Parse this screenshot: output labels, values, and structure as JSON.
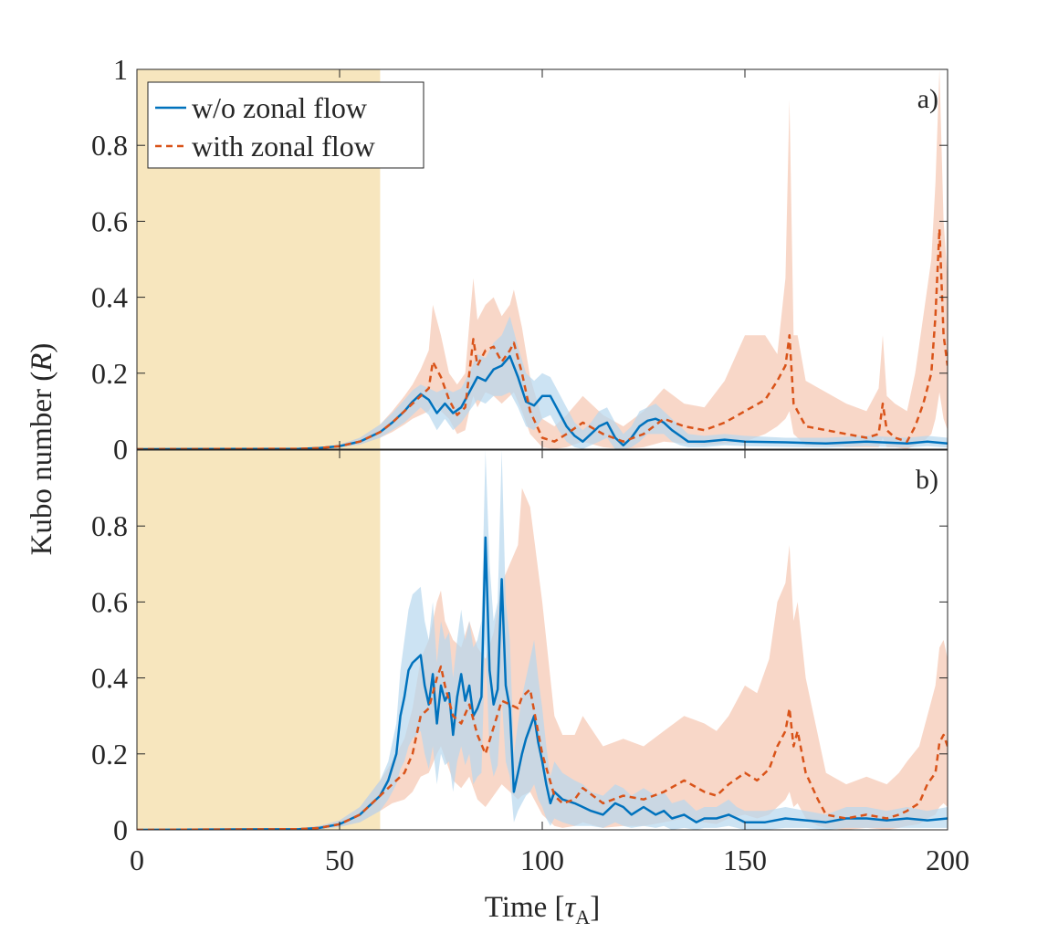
{
  "figure": {
    "xlabel_main": "Time [",
    "xlabel_tau": "τ",
    "xlabel_sub": "A",
    "xlabel_end": "]",
    "ylabel_main": "Kubo number (",
    "ylabel_var": "R",
    "ylabel_end": ")"
  },
  "colors": {
    "blue": "#0072BD",
    "blue_band": "#B7D7EE",
    "orange": "#D95319",
    "orange_band": "#F6C9B5",
    "shade": "#F7E6BE",
    "axis": "#262626"
  },
  "legend": {
    "items": [
      {
        "label": "w/o zonal flow",
        "style": "solid",
        "color": "#0072BD"
      },
      {
        "label": "with zonal flow",
        "style": "dashed",
        "color": "#D95319"
      }
    ]
  },
  "chart_data": [
    {
      "type": "line",
      "panel_label": "a)",
      "xlim": [
        0,
        200
      ],
      "ylim": [
        0,
        1
      ],
      "xticks": [
        0,
        50,
        100,
        150,
        200
      ],
      "yticks": [
        0,
        0.2,
        0.4,
        0.6,
        0.8,
        1
      ],
      "ytick_labels": [
        "0",
        "0.2",
        "0.4",
        "0.6",
        "0.8",
        "1"
      ],
      "shaded_region": [
        0,
        60
      ],
      "series": [
        {
          "name": "w/o zonal flow",
          "x": [
            0,
            40,
            45,
            50,
            55,
            60,
            63,
            66,
            68,
            70,
            72,
            74,
            76,
            78,
            80,
            82,
            84,
            86,
            88,
            90,
            92,
            94,
            96,
            98,
            100,
            102,
            104,
            106,
            108,
            110,
            112,
            114,
            116,
            118,
            120,
            122,
            124,
            126,
            128,
            130,
            132,
            134,
            136,
            140,
            145,
            150,
            160,
            170,
            180,
            190,
            195,
            200
          ],
          "y": [
            0,
            0.001,
            0.003,
            0.008,
            0.02,
            0.045,
            0.07,
            0.1,
            0.125,
            0.145,
            0.13,
            0.095,
            0.12,
            0.095,
            0.11,
            0.15,
            0.19,
            0.18,
            0.21,
            0.22,
            0.245,
            0.19,
            0.125,
            0.115,
            0.14,
            0.14,
            0.1,
            0.06,
            0.035,
            0.02,
            0.04,
            0.06,
            0.07,
            0.03,
            0.01,
            0.03,
            0.06,
            0.075,
            0.08,
            0.07,
            0.05,
            0.035,
            0.02,
            0.02,
            0.025,
            0.02,
            0.018,
            0.015,
            0.02,
            0.015,
            0.02,
            0.015
          ],
          "upper": [
            0,
            0.002,
            0.005,
            0.012,
            0.03,
            0.065,
            0.095,
            0.13,
            0.155,
            0.17,
            0.16,
            0.15,
            0.16,
            0.15,
            0.16,
            0.2,
            0.25,
            0.24,
            0.28,
            0.3,
            0.35,
            0.27,
            0.2,
            0.18,
            0.2,
            0.19,
            0.15,
            0.11,
            0.07,
            0.05,
            0.07,
            0.1,
            0.11,
            0.07,
            0.04,
            0.06,
            0.1,
            0.11,
            0.12,
            0.1,
            0.08,
            0.06,
            0.04,
            0.035,
            0.04,
            0.035,
            0.03,
            0.03,
            0.035,
            0.03,
            0.035,
            0.03
          ],
          "lower": [
            0,
            0.0005,
            0.002,
            0.005,
            0.012,
            0.03,
            0.05,
            0.07,
            0.09,
            0.11,
            0.09,
            0.05,
            0.08,
            0.05,
            0.07,
            0.1,
            0.13,
            0.12,
            0.14,
            0.14,
            0.15,
            0.11,
            0.06,
            0.05,
            0.08,
            0.09,
            0.05,
            0.02,
            0.005,
            0,
            0.01,
            0.02,
            0.03,
            0,
            0,
            0.005,
            0.02,
            0.04,
            0.04,
            0.04,
            0.02,
            0.01,
            0.005,
            0.005,
            0.01,
            0.008,
            0.006,
            0.004,
            0.008,
            0.004,
            0.008,
            0.004
          ]
        },
        {
          "name": "with zonal flow",
          "x": [
            0,
            40,
            45,
            50,
            55,
            60,
            63,
            66,
            68,
            70,
            72,
            73,
            75,
            77,
            79,
            81,
            82,
            83,
            84,
            86,
            88,
            90,
            92,
            93,
            95,
            97,
            100,
            103,
            106,
            110,
            115,
            120,
            125,
            130,
            135,
            140,
            145,
            150,
            155,
            158,
            160,
            161,
            162,
            163,
            165,
            170,
            175,
            180,
            183,
            184,
            185,
            187,
            190,
            192,
            194,
            196,
            197,
            198,
            199,
            200
          ],
          "y": [
            0,
            0.001,
            0.003,
            0.008,
            0.02,
            0.045,
            0.07,
            0.1,
            0.12,
            0.14,
            0.16,
            0.23,
            0.19,
            0.13,
            0.09,
            0.11,
            0.2,
            0.29,
            0.22,
            0.26,
            0.27,
            0.23,
            0.26,
            0.28,
            0.2,
            0.1,
            0.03,
            0.02,
            0.04,
            0.07,
            0.04,
            0.02,
            0.04,
            0.08,
            0.06,
            0.05,
            0.07,
            0.1,
            0.13,
            0.18,
            0.22,
            0.3,
            0.12,
            0.1,
            0.06,
            0.05,
            0.04,
            0.03,
            0.04,
            0.12,
            0.05,
            0.03,
            0.02,
            0.06,
            0.12,
            0.2,
            0.35,
            0.58,
            0.3,
            0.22
          ],
          "upper": [
            0,
            0.002,
            0.005,
            0.012,
            0.03,
            0.065,
            0.1,
            0.14,
            0.17,
            0.21,
            0.26,
            0.38,
            0.3,
            0.2,
            0.17,
            0.2,
            0.33,
            0.45,
            0.34,
            0.38,
            0.4,
            0.35,
            0.38,
            0.42,
            0.32,
            0.19,
            0.08,
            0.06,
            0.09,
            0.14,
            0.09,
            0.06,
            0.1,
            0.16,
            0.12,
            0.11,
            0.18,
            0.3,
            0.3,
            0.25,
            0.45,
            0.92,
            0.3,
            0.3,
            0.18,
            0.15,
            0.12,
            0.1,
            0.16,
            0.3,
            0.14,
            0.12,
            0.1,
            0.2,
            0.35,
            0.5,
            0.7,
            1.0,
            0.6,
            0.45
          ],
          "lower": [
            0,
            0.0005,
            0.002,
            0.005,
            0.012,
            0.03,
            0.045,
            0.065,
            0.08,
            0.09,
            0.1,
            0.12,
            0.1,
            0.08,
            0.04,
            0.05,
            0.1,
            0.14,
            0.11,
            0.15,
            0.14,
            0.12,
            0.14,
            0.15,
            0.1,
            0.04,
            0.005,
            0,
            0.005,
            0.02,
            0.005,
            0,
            0.005,
            0.02,
            0.015,
            0.01,
            0.015,
            0.02,
            0.04,
            0.06,
            0.08,
            0.1,
            0.04,
            0.03,
            0.01,
            0.01,
            0.005,
            0.005,
            0.005,
            0.03,
            0.005,
            0.005,
            0,
            0.01,
            0.02,
            0.04,
            0.08,
            0.15,
            0.08,
            0.05
          ]
        }
      ]
    },
    {
      "type": "line",
      "panel_label": "b)",
      "xlim": [
        0,
        200
      ],
      "ylim": [
        0,
        1
      ],
      "xticks": [
        0,
        50,
        100,
        150,
        200
      ],
      "yticks": [
        0,
        0.2,
        0.4,
        0.6,
        0.8
      ],
      "ytick_labels": [
        "0",
        "0.2",
        "0.4",
        "0.6",
        "0.8"
      ],
      "xtick_labels": [
        "0",
        "50",
        "100",
        "150",
        "200"
      ],
      "shaded_region": [
        0,
        60
      ],
      "series": [
        {
          "name": "w/o zonal flow",
          "x": [
            0,
            40,
            45,
            50,
            55,
            60,
            62,
            64,
            65,
            66,
            67,
            68,
            69,
            70,
            71,
            72,
            73,
            74,
            75,
            76,
            77,
            78,
            79,
            80,
            81,
            82,
            83,
            84,
            85,
            86,
            87,
            88,
            89,
            90,
            91,
            92,
            93,
            94,
            95,
            96,
            97,
            98,
            99,
            100,
            101,
            102,
            103,
            105,
            108,
            110,
            112,
            115,
            118,
            120,
            122,
            125,
            128,
            130,
            132,
            135,
            138,
            140,
            143,
            146,
            148,
            150,
            155,
            160,
            165,
            170,
            175,
            180,
            185,
            190,
            195,
            200
          ],
          "y": [
            0,
            0.002,
            0.005,
            0.015,
            0.04,
            0.09,
            0.13,
            0.2,
            0.3,
            0.35,
            0.42,
            0.44,
            0.45,
            0.46,
            0.38,
            0.33,
            0.41,
            0.28,
            0.38,
            0.34,
            0.36,
            0.25,
            0.35,
            0.41,
            0.34,
            0.38,
            0.3,
            0.32,
            0.35,
            0.77,
            0.42,
            0.33,
            0.37,
            0.66,
            0.38,
            0.32,
            0.1,
            0.15,
            0.2,
            0.24,
            0.27,
            0.3,
            0.23,
            0.18,
            0.12,
            0.07,
            0.1,
            0.08,
            0.07,
            0.06,
            0.05,
            0.04,
            0.07,
            0.06,
            0.04,
            0.06,
            0.04,
            0.05,
            0.03,
            0.04,
            0.02,
            0.03,
            0.03,
            0.04,
            0.03,
            0.02,
            0.02,
            0.03,
            0.025,
            0.02,
            0.03,
            0.03,
            0.025,
            0.03,
            0.025,
            0.03
          ],
          "upper": [
            0,
            0.004,
            0.01,
            0.025,
            0.06,
            0.13,
            0.18,
            0.28,
            0.42,
            0.5,
            0.58,
            0.62,
            0.63,
            0.64,
            0.55,
            0.5,
            0.6,
            0.44,
            0.55,
            0.5,
            0.52,
            0.4,
            0.5,
            0.58,
            0.5,
            0.55,
            0.48,
            0.5,
            0.55,
            1.0,
            0.7,
            0.55,
            0.6,
            1.0,
            0.6,
            0.5,
            0.2,
            0.28,
            0.35,
            0.4,
            0.45,
            0.5,
            0.4,
            0.32,
            0.22,
            0.14,
            0.18,
            0.15,
            0.13,
            0.12,
            0.1,
            0.09,
            0.12,
            0.11,
            0.09,
            0.11,
            0.09,
            0.1,
            0.07,
            0.08,
            0.05,
            0.06,
            0.06,
            0.08,
            0.06,
            0.05,
            0.05,
            0.06,
            0.05,
            0.04,
            0.06,
            0.06,
            0.05,
            0.06,
            0.05,
            0.06
          ],
          "lower": [
            0,
            0.001,
            0.002,
            0.008,
            0.02,
            0.05,
            0.08,
            0.12,
            0.16,
            0.18,
            0.22,
            0.24,
            0.25,
            0.26,
            0.2,
            0.16,
            0.22,
            0.12,
            0.2,
            0.17,
            0.18,
            0.1,
            0.18,
            0.22,
            0.17,
            0.2,
            0.12,
            0.14,
            0.15,
            0.5,
            0.2,
            0.14,
            0.17,
            0.35,
            0.18,
            0.14,
            0.02,
            0.05,
            0.07,
            0.09,
            0.1,
            0.12,
            0.08,
            0.06,
            0.03,
            0.01,
            0.03,
            0.02,
            0.01,
            0.01,
            0.01,
            0.005,
            0.02,
            0.01,
            0.005,
            0.01,
            0.005,
            0.01,
            0,
            0.005,
            0,
            0.005,
            0.005,
            0.01,
            0.005,
            0,
            0,
            0.005,
            0.005,
            0,
            0.005,
            0.005,
            0.005,
            0.005,
            0.005,
            0.005
          ]
        },
        {
          "name": "with zonal flow",
          "x": [
            0,
            40,
            45,
            50,
            55,
            60,
            63,
            66,
            68,
            70,
            72,
            74,
            75,
            76,
            78,
            80,
            82,
            84,
            86,
            88,
            90,
            92,
            94,
            95,
            97,
            100,
            103,
            105,
            108,
            110,
            115,
            120,
            125,
            130,
            135,
            140,
            143,
            146,
            150,
            153,
            156,
            158,
            160,
            161,
            162,
            163,
            165,
            168,
            170,
            175,
            180,
            185,
            188,
            190,
            193,
            195,
            197,
            198,
            199,
            200
          ],
          "y": [
            0,
            0.002,
            0.005,
            0.015,
            0.04,
            0.09,
            0.12,
            0.15,
            0.2,
            0.3,
            0.32,
            0.4,
            0.43,
            0.38,
            0.3,
            0.28,
            0.33,
            0.25,
            0.2,
            0.27,
            0.34,
            0.33,
            0.32,
            0.35,
            0.37,
            0.2,
            0.09,
            0.07,
            0.08,
            0.11,
            0.07,
            0.09,
            0.08,
            0.1,
            0.13,
            0.1,
            0.09,
            0.12,
            0.15,
            0.13,
            0.16,
            0.22,
            0.26,
            0.32,
            0.22,
            0.26,
            0.15,
            0.08,
            0.04,
            0.03,
            0.04,
            0.03,
            0.04,
            0.05,
            0.07,
            0.12,
            0.15,
            0.23,
            0.25,
            0.22
          ],
          "upper": [
            0,
            0.004,
            0.01,
            0.025,
            0.06,
            0.13,
            0.18,
            0.24,
            0.32,
            0.45,
            0.5,
            0.6,
            0.63,
            0.55,
            0.5,
            0.48,
            0.55,
            0.48,
            0.45,
            0.52,
            0.65,
            0.7,
            0.75,
            0.9,
            0.85,
            0.6,
            0.3,
            0.25,
            0.25,
            0.3,
            0.22,
            0.24,
            0.22,
            0.26,
            0.3,
            0.28,
            0.26,
            0.3,
            0.38,
            0.36,
            0.45,
            0.6,
            0.65,
            0.75,
            0.55,
            0.6,
            0.4,
            0.25,
            0.15,
            0.12,
            0.14,
            0.12,
            0.15,
            0.18,
            0.22,
            0.3,
            0.38,
            0.48,
            0.5,
            0.45
          ],
          "lower": [
            0,
            0.001,
            0.002,
            0.008,
            0.02,
            0.05,
            0.07,
            0.08,
            0.1,
            0.14,
            0.15,
            0.2,
            0.22,
            0.19,
            0.13,
            0.11,
            0.14,
            0.08,
            0.06,
            0.09,
            0.12,
            0.1,
            0.08,
            0.09,
            0.1,
            0.04,
            0.01,
            0.005,
            0.01,
            0.02,
            0.005,
            0.01,
            0.01,
            0.02,
            0.03,
            0.02,
            0.015,
            0.03,
            0.04,
            0.03,
            0.04,
            0.06,
            0.08,
            0.1,
            0.06,
            0.07,
            0.03,
            0.01,
            0.005,
            0,
            0.005,
            0,
            0.005,
            0.01,
            0.015,
            0.03,
            0.04,
            0.06,
            0.07,
            0.06
          ]
        }
      ]
    }
  ]
}
